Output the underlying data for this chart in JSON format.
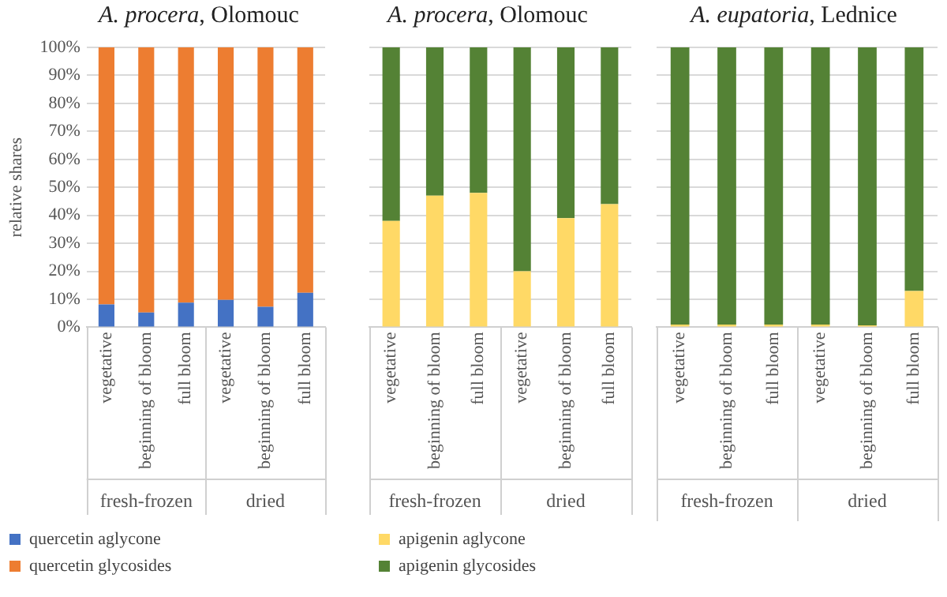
{
  "chart_data": [
    {
      "type": "bar",
      "title": "A. procera, Olomouc",
      "ylabel": "relative shares",
      "stacked": true,
      "legend": "bottom",
      "grid": "y",
      "categories": [
        "vegetative",
        "beginning of bloom",
        "full bloom",
        "vegetative",
        "beginning of bloom",
        "full bloom"
      ],
      "annotations": [
        "fresh-frozen",
        "dried"
      ],
      "ylim": [
        0,
        100
      ],
      "yticks": [
        {
          "value": 0,
          "label": "0%"
        },
        {
          "value": 10,
          "label": "10%"
        },
        {
          "value": 20,
          "label": "20%"
        },
        {
          "value": 30,
          "label": "30%"
        },
        {
          "value": 40,
          "label": "40%"
        },
        {
          "value": 50,
          "label": "50%"
        },
        {
          "value": 60,
          "label": "60%"
        },
        {
          "value": 70,
          "label": "70%"
        },
        {
          "value": 80,
          "label": "80%"
        },
        {
          "value": 90,
          "label": "90%"
        },
        {
          "value": 100,
          "label": "100%"
        }
      ],
      "series": [
        {
          "name": "quercetin aglycone",
          "color": "#4472c4",
          "values": [
            8.2,
            5.3,
            8.8,
            9.8,
            7.3,
            12.3
          ]
        },
        {
          "name": "quercetin glycosides",
          "color": "#ed7d31",
          "values": [
            91.8,
            94.7,
            91.2,
            90.2,
            92.7,
            87.7
          ]
        }
      ]
    },
    {
      "type": "bar",
      "title": "A. procera, Olomouc",
      "stacked": true,
      "legend": "bottom",
      "grid": "y",
      "tick_labels": "x",
      "categories": [
        "vegetative",
        "beginning of bloom",
        "full bloom",
        "vegetative",
        "beginning of bloom",
        "full bloom"
      ],
      "annotations": [
        "fresh-frozen",
        "dried"
      ],
      "ylim": [
        0,
        100
      ],
      "series": [
        {
          "name": "apigenin aglycone",
          "color": "#ffd966",
          "values": [
            38,
            47,
            48,
            20,
            39,
            44
          ]
        },
        {
          "name": "apigenin glycosides",
          "color": "#548235",
          "values": [
            62,
            53,
            52,
            80,
            61,
            56
          ]
        }
      ]
    },
    {
      "type": "bar",
      "title": "A. eupatoria, Lednice",
      "stacked": true,
      "grid": "y",
      "tick_labels": "x",
      "categories": [
        "vegetative",
        "beginning of bloom",
        "full bloom",
        "vegetative",
        "beginning of bloom",
        "full bloom"
      ],
      "annotations": [
        "fresh-frozen",
        "dried"
      ],
      "ylim": [
        0,
        100
      ],
      "series": [
        {
          "color": "#ffd966",
          "values": [
            1,
            1,
            1,
            1,
            0.7,
            13
          ]
        },
        {
          "color": "#548235",
          "values": [
            99,
            99,
            99,
            99,
            99.3,
            87
          ]
        }
      ]
    }
  ]
}
